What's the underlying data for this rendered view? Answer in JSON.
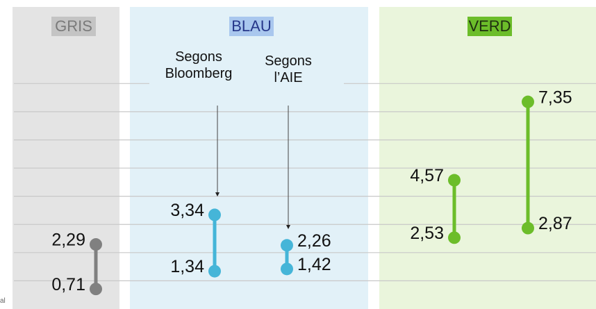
{
  "chart_data": {
    "type": "dumbbell",
    "ylim": [
      0,
      8.5
    ],
    "yticks": [
      1,
      2,
      3,
      4,
      5,
      6,
      7,
      8
    ],
    "grid": true,
    "series": [
      {
        "name": "GRIS",
        "color": "#808080",
        "panel_color": "#e4e4e4",
        "name_background": "#c4c4c4",
        "name_color": "#7a7a7a",
        "values": [
          [
            0.71,
            2.29
          ]
        ],
        "value_labels": [
          [
            "0,71",
            "2,29"
          ]
        ]
      },
      {
        "name": "BLAU",
        "color": "#45b5d8",
        "panel_color": "#e2f1f8",
        "name_background": "#a9c7ee",
        "name_color": "#26378a",
        "values": [
          [
            1.34,
            3.34
          ],
          [
            1.42,
            2.26
          ]
        ],
        "value_labels": [
          [
            "1,34",
            "3,34"
          ],
          [
            "1,42",
            "2,26"
          ]
        ],
        "annotations": [
          "Segons\nBloomberg",
          "Segons\nl’AIE"
        ]
      },
      {
        "name": "VERD",
        "color": "#6cbd2a",
        "panel_color": "#eaf5dc",
        "name_background": "#6cbd2a",
        "name_color": "#1f2f10",
        "values": [
          [
            2.53,
            4.57
          ],
          [
            2.87,
            7.35
          ]
        ],
        "value_labels": [
          [
            "2,53",
            "4,57"
          ],
          [
            "2,87",
            "7,35"
          ]
        ]
      }
    ],
    "note": "al"
  }
}
